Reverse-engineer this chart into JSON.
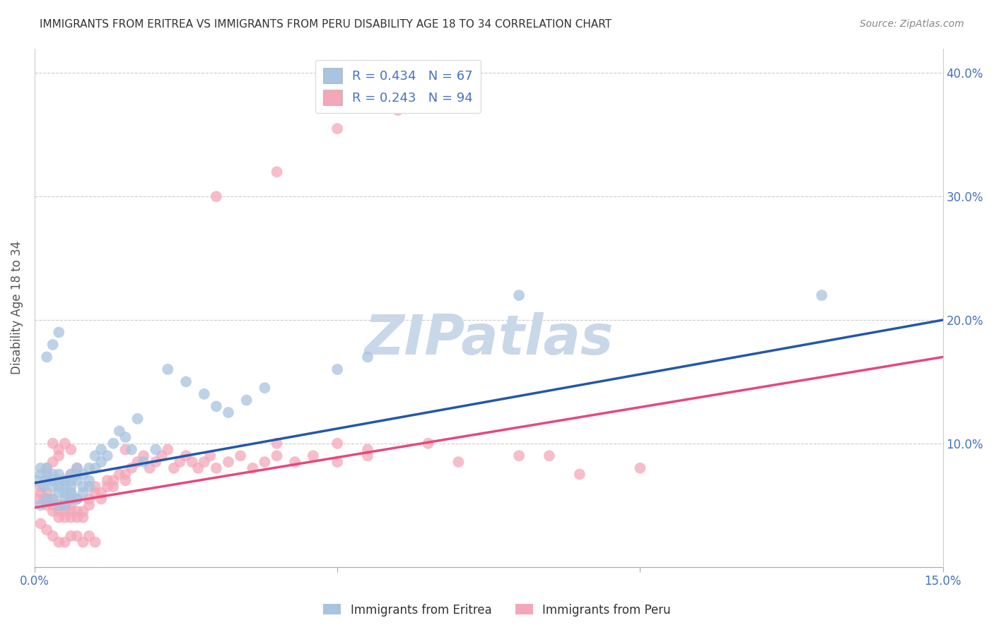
{
  "title": "IMMIGRANTS FROM ERITREA VS IMMIGRANTS FROM PERU DISABILITY AGE 18 TO 34 CORRELATION CHART",
  "source": "Source: ZipAtlas.com",
  "ylabel": "Disability Age 18 to 34",
  "xlim": [
    0.0,
    0.15
  ],
  "ylim": [
    0.0,
    0.42
  ],
  "eritrea_color": "#a8c4e0",
  "peru_color": "#f4a7b9",
  "eritrea_line_color": "#2457a8",
  "peru_line_color": "#e8477a",
  "eritrea_R": 0.434,
  "eritrea_N": 67,
  "peru_R": 0.243,
  "peru_N": 94,
  "watermark_text": "ZIPatlas",
  "watermark_color": "#c8d8e8",
  "line_blue_x0": 0.0,
  "line_blue_y0": 0.068,
  "line_blue_x1": 0.15,
  "line_blue_y1": 0.2,
  "line_pink_x0": 0.0,
  "line_pink_y0": 0.048,
  "line_pink_x1": 0.15,
  "line_pink_y1": 0.17,
  "eritrea_x": [
    0.0005,
    0.001,
    0.001,
    0.0015,
    0.002,
    0.002,
    0.002,
    0.003,
    0.003,
    0.003,
    0.004,
    0.004,
    0.004,
    0.004,
    0.005,
    0.005,
    0.005,
    0.005,
    0.006,
    0.006,
    0.006,
    0.006,
    0.006,
    0.007,
    0.007,
    0.007,
    0.008,
    0.008,
    0.009,
    0.009,
    0.009,
    0.01,
    0.01,
    0.011,
    0.011,
    0.012,
    0.013,
    0.014,
    0.015,
    0.016,
    0.017,
    0.018,
    0.02,
    0.022,
    0.025,
    0.028,
    0.03,
    0.032,
    0.035,
    0.038,
    0.001,
    0.002,
    0.003,
    0.004,
    0.005,
    0.006,
    0.007,
    0.008,
    0.002,
    0.003,
    0.004,
    0.05,
    0.055,
    0.08,
    0.13,
    0.006,
    0.007
  ],
  "eritrea_y": [
    0.07,
    0.08,
    0.075,
    0.065,
    0.07,
    0.075,
    0.08,
    0.065,
    0.07,
    0.075,
    0.06,
    0.065,
    0.07,
    0.075,
    0.055,
    0.06,
    0.065,
    0.07,
    0.055,
    0.06,
    0.065,
    0.07,
    0.075,
    0.07,
    0.075,
    0.08,
    0.065,
    0.075,
    0.065,
    0.07,
    0.08,
    0.08,
    0.09,
    0.085,
    0.095,
    0.09,
    0.1,
    0.11,
    0.105,
    0.095,
    0.12,
    0.085,
    0.095,
    0.16,
    0.15,
    0.14,
    0.13,
    0.125,
    0.135,
    0.145,
    0.05,
    0.055,
    0.055,
    0.05,
    0.05,
    0.055,
    0.055,
    0.06,
    0.17,
    0.18,
    0.19,
    0.16,
    0.17,
    0.22,
    0.22,
    0.06,
    0.055
  ],
  "peru_x": [
    0.0005,
    0.001,
    0.001,
    0.0015,
    0.002,
    0.002,
    0.002,
    0.003,
    0.003,
    0.003,
    0.004,
    0.004,
    0.004,
    0.005,
    0.005,
    0.005,
    0.006,
    0.006,
    0.006,
    0.007,
    0.007,
    0.008,
    0.008,
    0.009,
    0.009,
    0.01,
    0.01,
    0.011,
    0.011,
    0.012,
    0.012,
    0.013,
    0.013,
    0.014,
    0.015,
    0.015,
    0.016,
    0.017,
    0.018,
    0.019,
    0.02,
    0.021,
    0.022,
    0.023,
    0.024,
    0.025,
    0.026,
    0.027,
    0.028,
    0.029,
    0.03,
    0.032,
    0.034,
    0.036,
    0.038,
    0.04,
    0.043,
    0.046,
    0.05,
    0.055,
    0.001,
    0.002,
    0.003,
    0.004,
    0.005,
    0.006,
    0.007,
    0.008,
    0.009,
    0.01,
    0.002,
    0.003,
    0.004,
    0.005,
    0.006,
    0.007,
    0.003,
    0.004,
    0.005,
    0.006,
    0.04,
    0.05,
    0.055,
    0.065,
    0.07,
    0.08,
    0.09,
    0.1,
    0.085,
    0.015,
    0.03,
    0.04,
    0.05,
    0.06
  ],
  "peru_y": [
    0.055,
    0.06,
    0.065,
    0.055,
    0.05,
    0.055,
    0.06,
    0.045,
    0.05,
    0.055,
    0.04,
    0.045,
    0.05,
    0.04,
    0.045,
    0.05,
    0.04,
    0.045,
    0.05,
    0.04,
    0.045,
    0.04,
    0.045,
    0.05,
    0.055,
    0.06,
    0.065,
    0.055,
    0.06,
    0.065,
    0.07,
    0.065,
    0.07,
    0.075,
    0.07,
    0.075,
    0.08,
    0.085,
    0.09,
    0.08,
    0.085,
    0.09,
    0.095,
    0.08,
    0.085,
    0.09,
    0.085,
    0.08,
    0.085,
    0.09,
    0.08,
    0.085,
    0.09,
    0.08,
    0.085,
    0.09,
    0.085,
    0.09,
    0.085,
    0.09,
    0.035,
    0.03,
    0.025,
    0.02,
    0.02,
    0.025,
    0.025,
    0.02,
    0.025,
    0.02,
    0.08,
    0.085,
    0.09,
    0.07,
    0.075,
    0.08,
    0.1,
    0.095,
    0.1,
    0.095,
    0.1,
    0.1,
    0.095,
    0.1,
    0.085,
    0.09,
    0.075,
    0.08,
    0.09,
    0.095,
    0.3,
    0.32,
    0.355,
    0.37
  ]
}
